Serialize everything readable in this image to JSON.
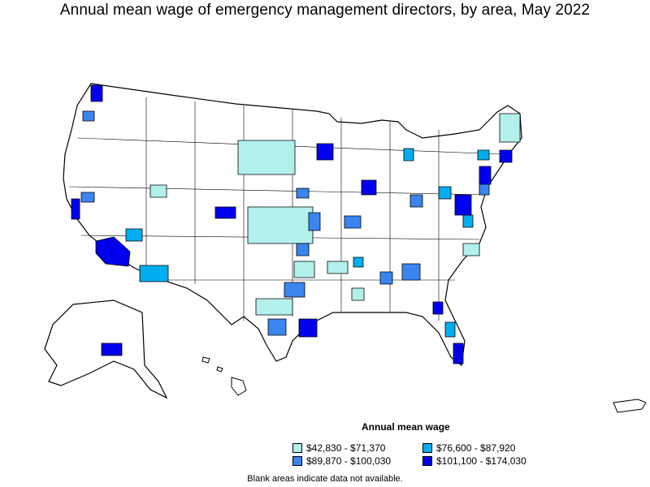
{
  "title": "Annual mean wage of emergency management directors, by area, May 2022",
  "legend": {
    "title": "Annual mean wage",
    "items": [
      {
        "label": "$42,830 - $71,370",
        "color": "#b2f0ec"
      },
      {
        "label": "$76,600 - $87,920",
        "color": "#00aeef"
      },
      {
        "label": "$89,870 - $100,030",
        "color": "#3b85f0"
      },
      {
        "label": "$101,100 - $174,030",
        "color": "#0000ee"
      }
    ]
  },
  "footnote": "Blank areas indicate data not available.",
  "colors": {
    "land": "#ffffff",
    "border": "#000000"
  }
}
